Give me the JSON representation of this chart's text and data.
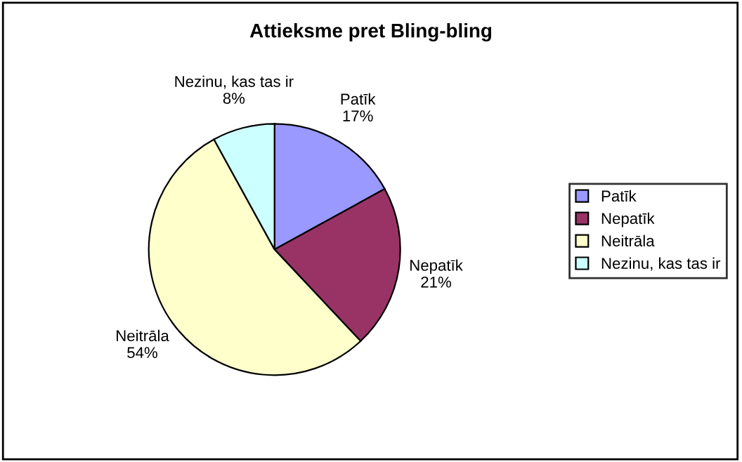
{
  "chart_data": {
    "type": "pie",
    "title": "Attieksme pret Bling-bling",
    "categories": [
      "Patīk",
      "Nepatīk",
      "Neitrāla",
      "Nezinu, kas tas ir"
    ],
    "values": [
      17,
      21,
      54,
      8
    ],
    "colors": [
      "#9999ff",
      "#993366",
      "#ffffcc",
      "#ccffff"
    ],
    "value_labels": [
      "17%",
      "21%",
      "54%",
      "8%"
    ],
    "legend": "right"
  }
}
